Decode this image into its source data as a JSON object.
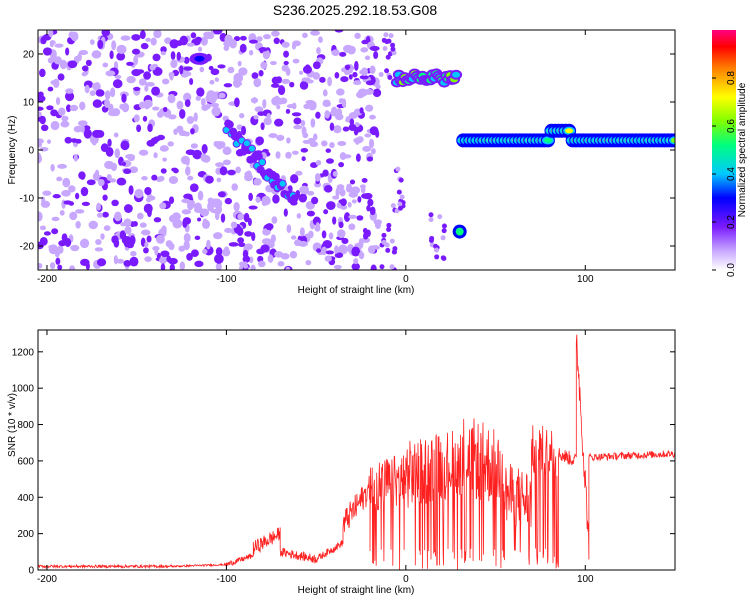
{
  "figure_title": "S236.2025.292.18.53.G08",
  "chart_data": [
    {
      "type": "heatmap",
      "ylabel": "Frequency (Hz)",
      "xlabel": "Height of straight line (km)",
      "xlim": [
        -205,
        150
      ],
      "ylim": [
        -25,
        25
      ],
      "xticks": [
        -200,
        -100,
        0,
        100
      ],
      "yticks": [
        -20,
        -10,
        0,
        10,
        20
      ],
      "colorbar": {
        "label": "Normalized spectral amplitude",
        "ticks": [
          0.0,
          0.2,
          0.4,
          0.6,
          0.8
        ],
        "range": [
          0,
          1
        ],
        "colormap": [
          "#ffffff",
          "#c8a8ff",
          "#7a1aff",
          "#0000ff",
          "#00c8ff",
          "#00ff80",
          "#80ff00",
          "#ffff00",
          "#ff8000",
          "#ff0000",
          "#ff0080"
        ]
      },
      "features": [
        {
          "name": "background noise",
          "x": [
            -205,
            -15
          ],
          "amplitude": 0.15
        },
        {
          "name": "descending track",
          "x_start": -100,
          "y_start": 5,
          "x_end": -62,
          "y_end": -11,
          "amplitude": 0.35
        },
        {
          "name": "upper track",
          "x_start": -5,
          "x_end": 28,
          "y": 15,
          "amplitude": 0.6
        },
        {
          "name": "main carrier",
          "x_start": 32,
          "x_end": 150,
          "y": 2,
          "amplitude": 0.75
        },
        {
          "name": "isolated blob",
          "x": 30,
          "y": -17,
          "amplitude": 0.3
        },
        {
          "name": "upper-left patch",
          "x": -115,
          "y": 19,
          "amplitude": 0.3
        }
      ]
    },
    {
      "type": "line",
      "ylabel": "SNR (10 * v/v)",
      "xlabel": "Height of straight line (km)",
      "xlim": [
        -205,
        150
      ],
      "ylim": [
        0,
        1320
      ],
      "xticks": [
        -200,
        -100,
        0,
        100
      ],
      "yticks": [
        0,
        200,
        400,
        600,
        800,
        1000,
        1200
      ],
      "color": "#ff2020",
      "series": [
        {
          "segments": [
            {
              "x": [
                -205,
                -130
              ],
              "y": [
                20,
                20
              ],
              "noise": 15
            },
            {
              "x": [
                -130,
                -100
              ],
              "y": [
                20,
                30
              ],
              "noise": 10
            },
            {
              "x": [
                -100,
                -85
              ],
              "y": [
                30,
                80
              ],
              "noise": 30
            },
            {
              "x": [
                -85,
                -70
              ],
              "y": [
                120,
                200
              ],
              "noise": 80
            },
            {
              "x": [
                -70,
                -50
              ],
              "y": [
                100,
                60
              ],
              "noise": 50
            },
            {
              "x": [
                -50,
                -35
              ],
              "y": [
                60,
                150
              ],
              "noise": 40
            },
            {
              "x": [
                -35,
                -20
              ],
              "y": [
                250,
                450
              ],
              "noise": 150
            },
            {
              "x": [
                -20,
                0
              ],
              "y": [
                450,
                500
              ],
              "noise": 300
            },
            {
              "x": [
                0,
                30
              ],
              "y": [
                520,
                600
              ],
              "noise": 380
            },
            {
              "x": [
                30,
                55
              ],
              "y": [
                640,
                550
              ],
              "noise": 450
            },
            {
              "x": [
                55,
                70
              ],
              "y": [
                420,
                380
              ],
              "noise": 350
            },
            {
              "x": [
                70,
                85
              ],
              "y": [
                650,
                640
              ],
              "noise": 300
            },
            {
              "x": [
                85,
                95
              ],
              "y": [
                640,
                600
              ],
              "noise": 80
            },
            {
              "x": [
                95,
                102
              ],
              "y": [
                1300,
                150
              ],
              "noise": 200
            },
            {
              "x": [
                102,
                150
              ],
              "y": [
                620,
                640
              ],
              "noise": 40
            }
          ]
        }
      ]
    }
  ]
}
